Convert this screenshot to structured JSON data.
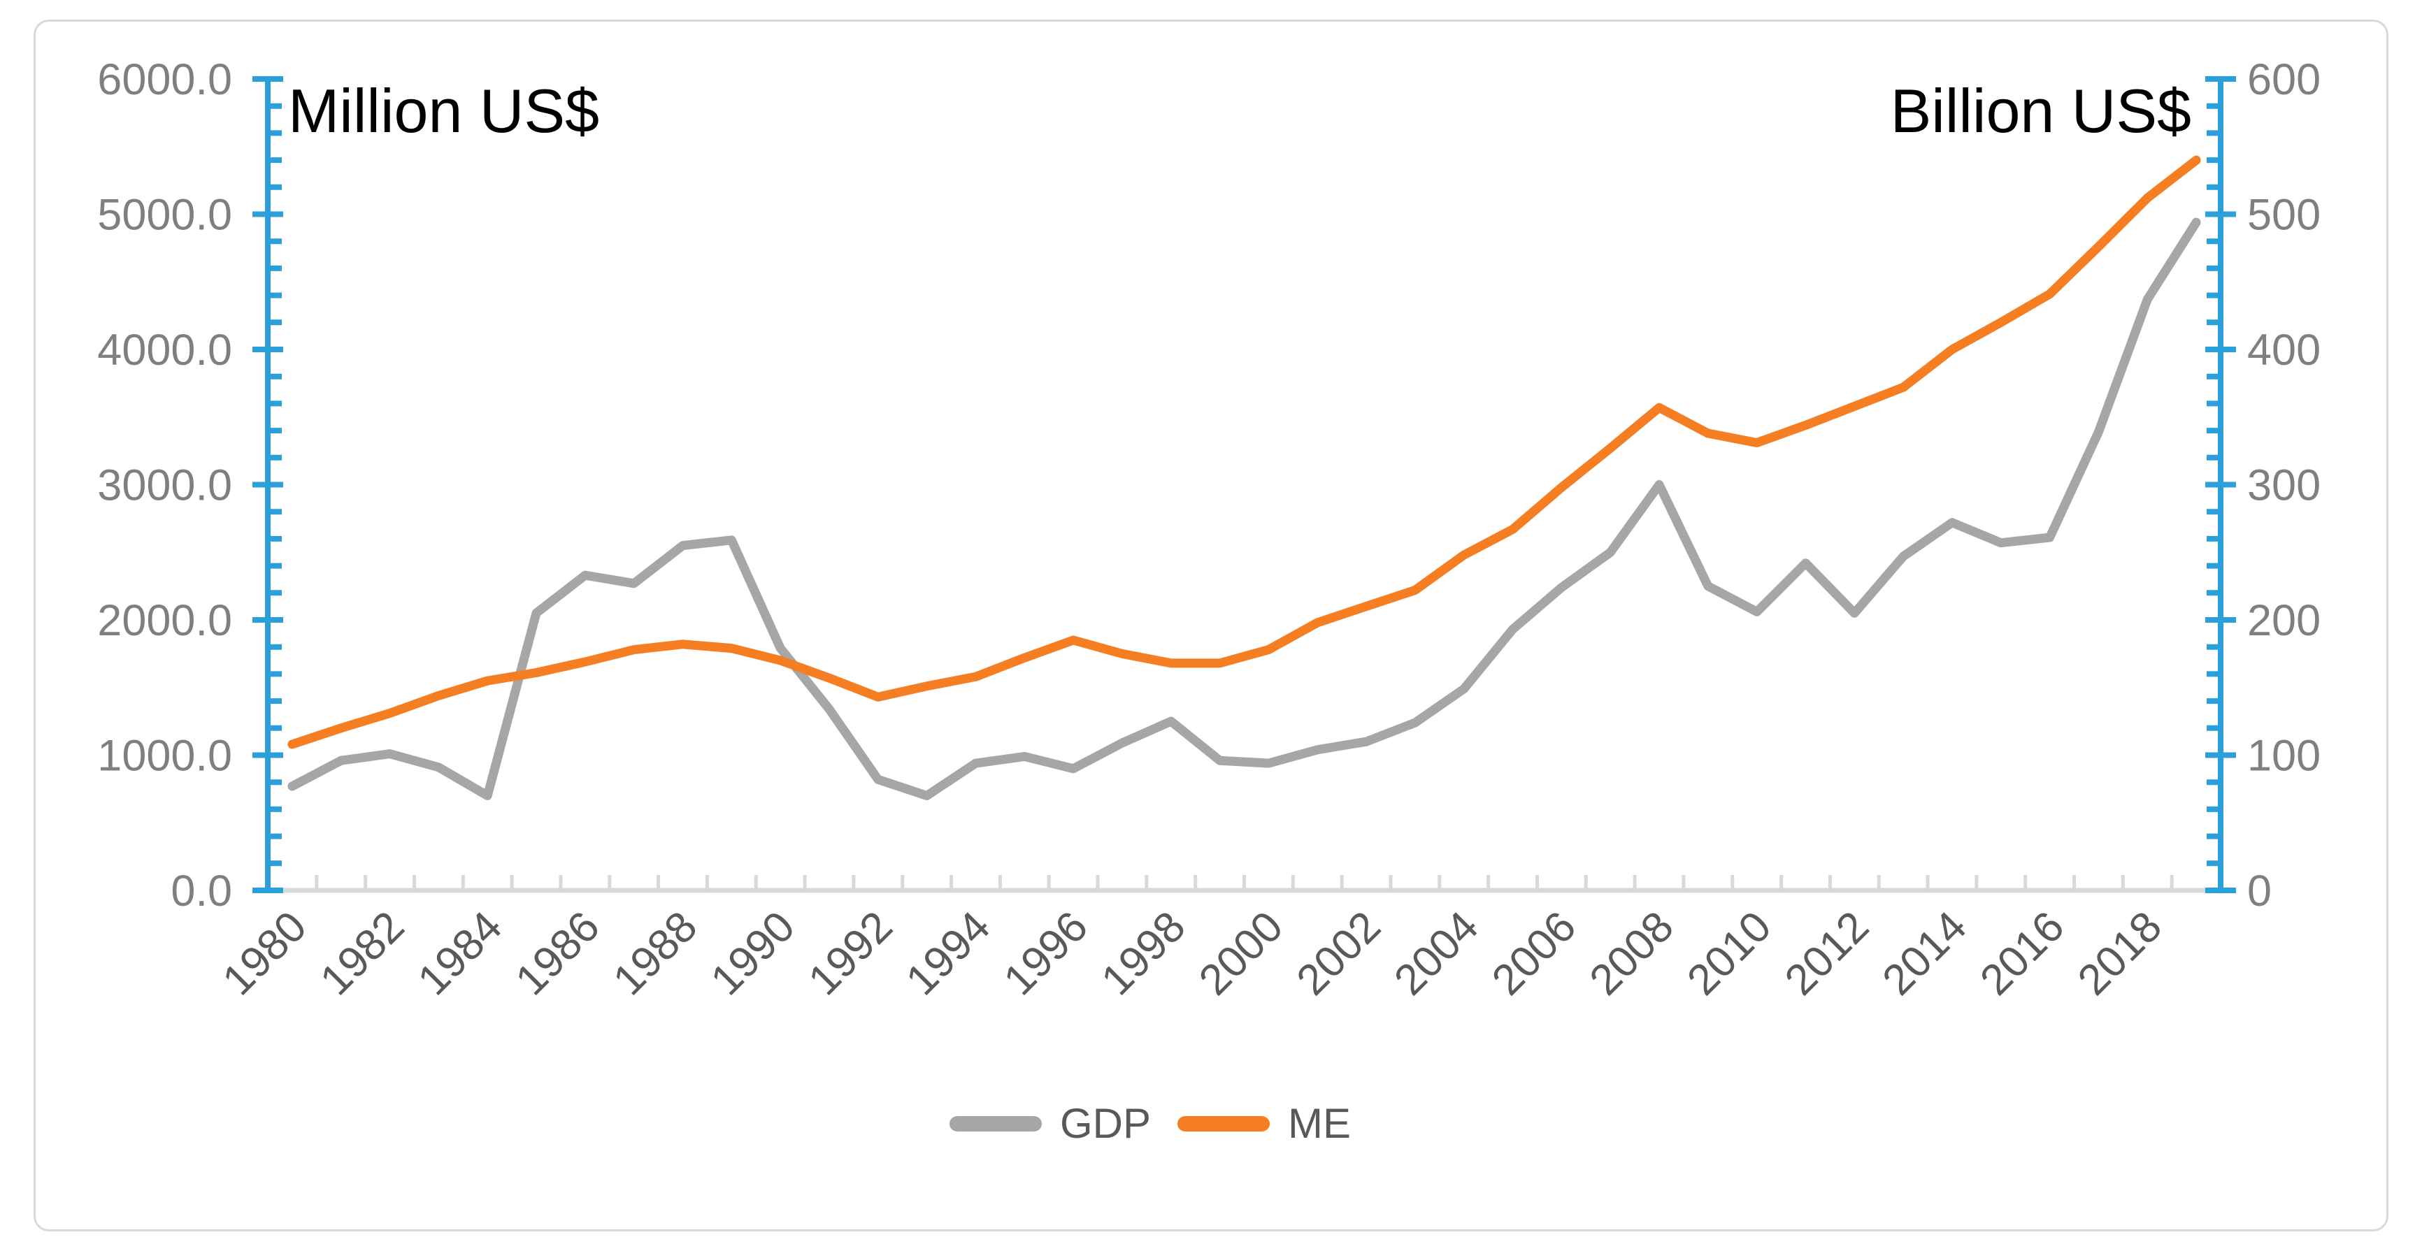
{
  "chart_data": {
    "type": "line",
    "title": "",
    "left_axis": {
      "title": "Million US$",
      "min": 0,
      "max": 6000,
      "major_unit": 1000,
      "minor_unit": 200,
      "tick_labels": [
        "6000.0",
        "5000.0",
        "4000.0",
        "3000.0",
        "2000.0",
        "1000.0",
        "0.0"
      ]
    },
    "right_axis": {
      "title": "Billion US$",
      "min": 0,
      "max": 600,
      "major_unit": 100,
      "minor_unit": 20,
      "tick_labels": [
        "600",
        "500",
        "400",
        "300",
        "200",
        "100",
        "0"
      ]
    },
    "x_axis": {
      "years": [
        1980,
        1981,
        1982,
        1983,
        1984,
        1985,
        1986,
        1987,
        1988,
        1989,
        1990,
        1991,
        1992,
        1993,
        1994,
        1995,
        1996,
        1997,
        1998,
        1999,
        2000,
        2001,
        2002,
        2003,
        2004,
        2005,
        2006,
        2007,
        2008,
        2009,
        2010,
        2011,
        2012,
        2013,
        2014,
        2015,
        2016,
        2017,
        2018,
        2019
      ],
      "labels": [
        "1980",
        "1982",
        "1984",
        "1986",
        "1988",
        "1990",
        "1992",
        "1994",
        "1996",
        "1998",
        "2000",
        "2002",
        "2004",
        "2006",
        "2008",
        "2010",
        "2012",
        "2014",
        "2016",
        "2018"
      ],
      "label_interval": 2
    },
    "series": [
      {
        "name": "GDP",
        "color": "#A6A6A6",
        "values_left_axis_units": [
          770,
          960,
          1010,
          910,
          700,
          2050,
          2330,
          2270,
          2550,
          2590,
          1790,
          1340,
          820,
          700,
          940,
          990,
          900,
          1090,
          1250,
          960,
          940,
          1040,
          1100,
          1240,
          1490,
          1930,
          2240,
          2500,
          3000,
          2250,
          2060,
          2420,
          2050,
          2470,
          2720,
          2570,
          2610,
          3390,
          4370,
          4940
        ]
      },
      {
        "name": "ME",
        "color": "#F57E22",
        "values_left_axis_units": [
          1080,
          1200,
          1310,
          1440,
          1550,
          1610,
          1690,
          1780,
          1820,
          1790,
          1700,
          1570,
          1430,
          1510,
          1580,
          1720,
          1850,
          1750,
          1680,
          1680,
          1780,
          1980,
          2100,
          2220,
          2480,
          2670,
          2980,
          3270,
          3570,
          3380,
          3310,
          3440,
          3580,
          3720,
          4000,
          4200,
          4410,
          4760,
          5120,
          5400
        ]
      }
    ],
    "legend": {
      "position": "bottom",
      "entries": [
        "GDP",
        "ME"
      ]
    },
    "grid": "off"
  },
  "colors": {
    "value_axis": "#2B9FD9",
    "category_axis": "#D9D9D9",
    "tick_label": "#7F7F7F",
    "x_label": "#595959",
    "legend_text": "#595959",
    "gdp_line": "#A6A6A6",
    "me_line": "#F57E22",
    "frame_border": "#D9D9D9"
  },
  "labels": {
    "left_axis_title": "Million US$",
    "right_axis_title": "Billion US$",
    "legend_gdp": "GDP",
    "legend_me": "ME"
  }
}
